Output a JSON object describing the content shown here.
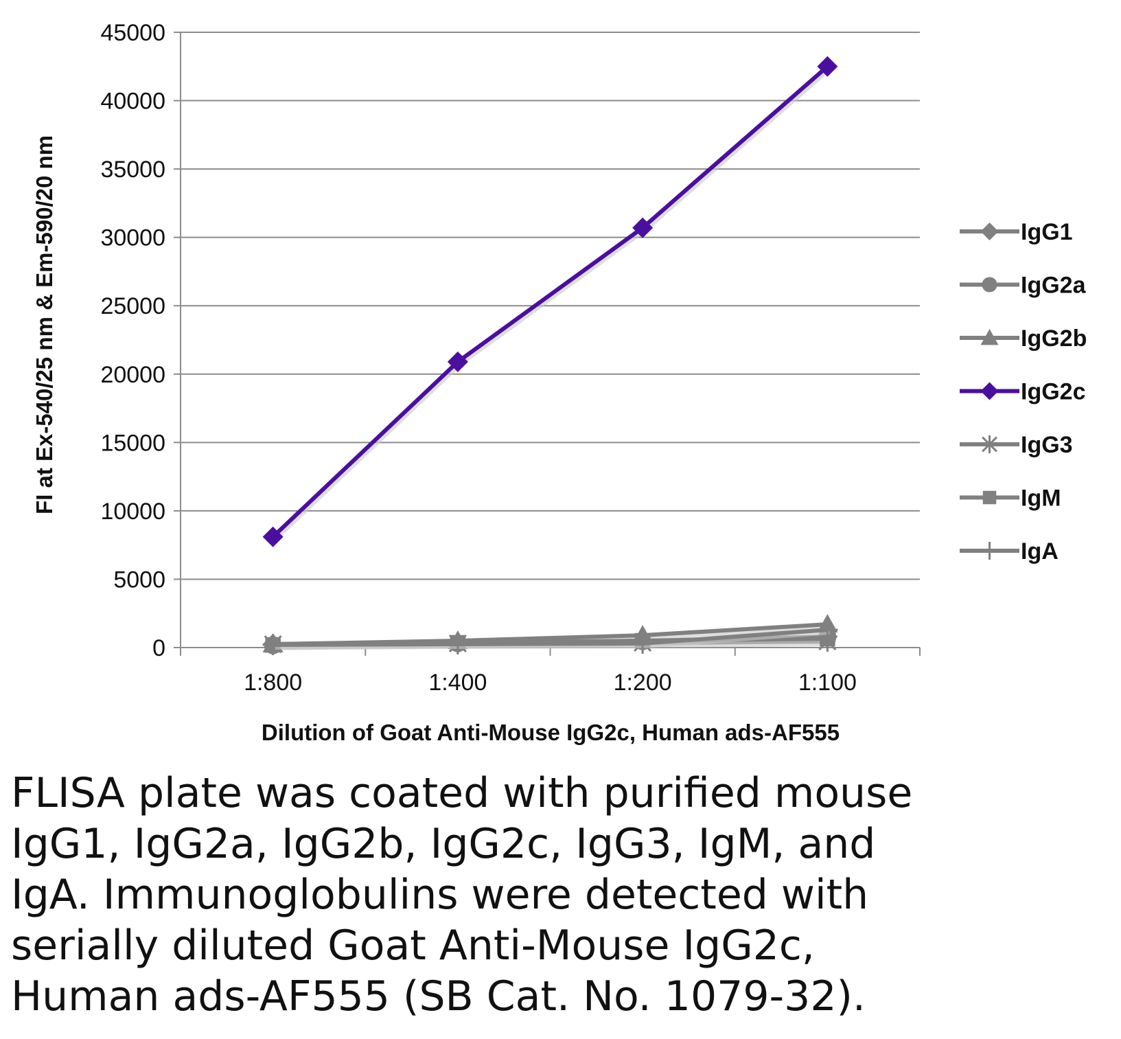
{
  "chart_data": {
    "type": "line",
    "categories": [
      "1:800",
      "1:400",
      "1:200",
      "1:100"
    ],
    "ylim": [
      0,
      45000
    ],
    "yticks": [
      0,
      5000,
      10000,
      15000,
      20000,
      25000,
      30000,
      35000,
      40000,
      45000
    ],
    "xlabel": "Dilution of Goat Anti-Mouse IgG2c, Human ads-AF555",
    "ylabel": "FI at Ex-540/25 nm & Em-590/20 nm",
    "grid": true,
    "legend_position": "right",
    "series": [
      {
        "name": "IgG1",
        "marker": "diamond",
        "color": "#808080",
        "values": [
          250,
          350,
          500,
          800
        ]
      },
      {
        "name": "IgG2a",
        "marker": "circle",
        "color": "#808080",
        "values": [
          150,
          300,
          450,
          700
        ]
      },
      {
        "name": "IgG2b",
        "marker": "triangle",
        "color": "#808080",
        "values": [
          250,
          500,
          900,
          1700
        ]
      },
      {
        "name": "IgG2c",
        "marker": "diamond",
        "color": "#4b0fa0",
        "values": [
          8100,
          20900,
          30700,
          42500
        ]
      },
      {
        "name": "IgG3",
        "marker": "star",
        "color": "#808080",
        "values": [
          250,
          300,
          350,
          450
        ]
      },
      {
        "name": "IgM",
        "marker": "square",
        "color": "#808080",
        "values": [
          200,
          350,
          500,
          650
        ]
      },
      {
        "name": "IgA",
        "marker": "plus",
        "color": "#808080",
        "values": [
          200,
          250,
          300,
          1300
        ]
      }
    ]
  },
  "caption": "FLISA plate was coated with purified mouse IgG1, IgG2a, IgG2b, IgG2c, IgG3, IgM, and IgA.  Immunoglobulins were detected with serially diluted Goat Anti-Mouse IgG2c, Human ads-AF555 (SB Cat. No. 1079-32)."
}
